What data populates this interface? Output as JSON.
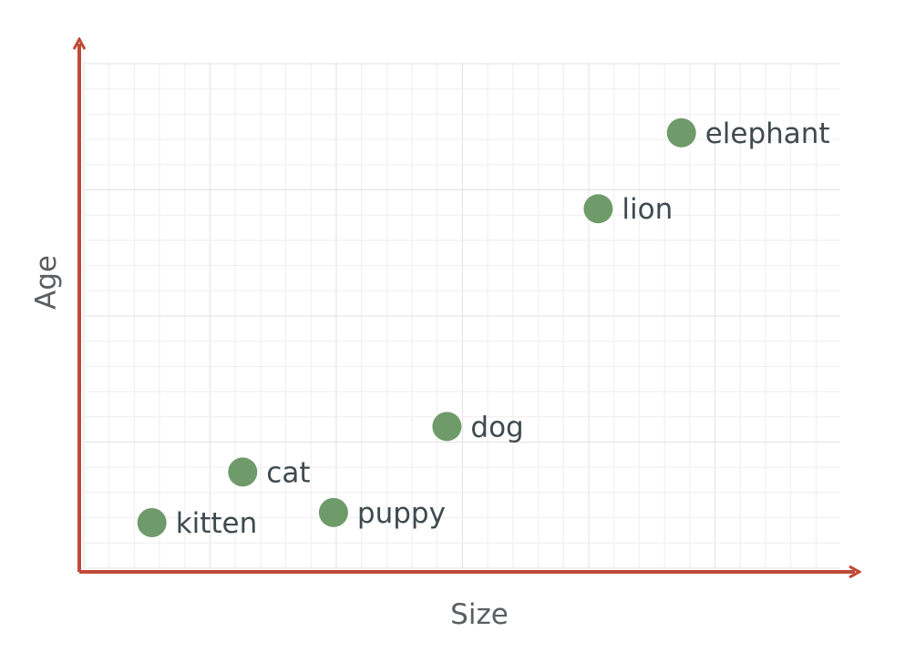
{
  "chart_data": {
    "type": "scatter",
    "title": "",
    "xlabel": "Size",
    "ylabel": "Age",
    "xlim": [
      0,
      100
    ],
    "ylim": [
      0,
      100
    ],
    "grid": true,
    "legend": "none",
    "points": [
      {
        "label": "kitten",
        "x": 9,
        "y": 9
      },
      {
        "label": "cat",
        "x": 21,
        "y": 19
      },
      {
        "label": "puppy",
        "x": 33,
        "y": 11
      },
      {
        "label": "dog",
        "x": 48,
        "y": 28
      },
      {
        "label": "lion",
        "x": 68,
        "y": 71
      },
      {
        "label": "elephant",
        "x": 79,
        "y": 86
      }
    ],
    "colors": {
      "point": "#6f9a69",
      "axis": "#bf4a38",
      "grid_minor": "#eeeeee",
      "grid_major": "#e2e2e2",
      "label_text": "#3f4a4f",
      "axis_label_text": "#5a5f63"
    }
  }
}
